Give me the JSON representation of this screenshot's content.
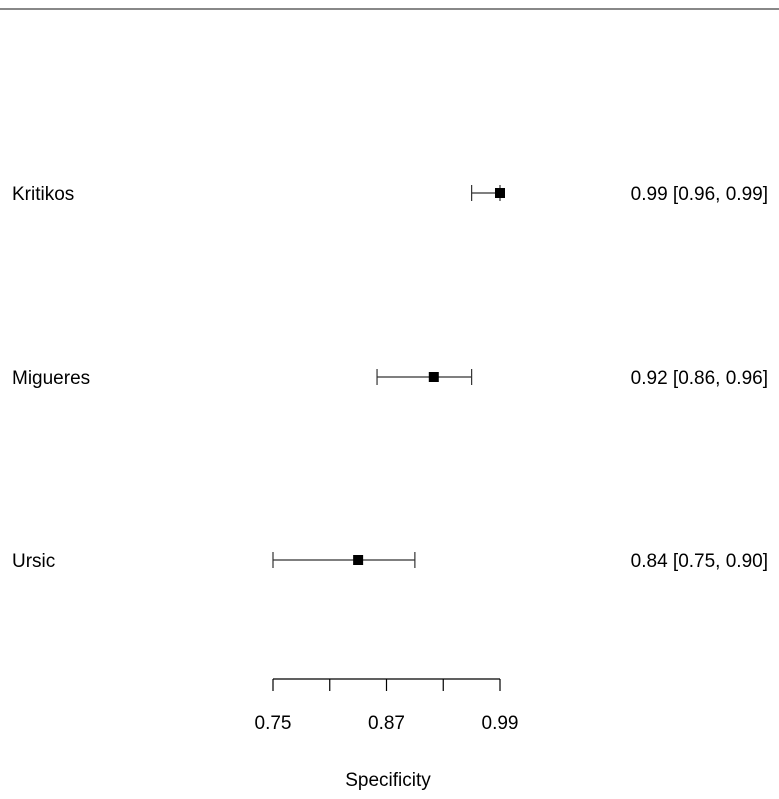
{
  "chart_data": {
    "type": "forest",
    "xlabel": "Specificity",
    "xticks": [
      0.75,
      0.81,
      0.87,
      0.93,
      0.99
    ],
    "xtick_labels": [
      "0.75",
      "",
      "0.87",
      "",
      "0.99"
    ],
    "xlim": [
      0.75,
      0.99
    ],
    "studies": [
      {
        "name": "Kritikos",
        "estimate": 0.99,
        "lower": 0.96,
        "upper": 0.99,
        "label": "0.99 [0.96, 0.99]"
      },
      {
        "name": "Migueres",
        "estimate": 0.92,
        "lower": 0.86,
        "upper": 0.96,
        "label": "0.92 [0.86, 0.96]"
      },
      {
        "name": "Ursic",
        "estimate": 0.84,
        "lower": 0.75,
        "upper": 0.9,
        "label": "0.84 [0.75, 0.90]"
      }
    ],
    "colors": {
      "marks": "#000000",
      "ci_line": "#333333",
      "top_rule": "#888888"
    }
  }
}
